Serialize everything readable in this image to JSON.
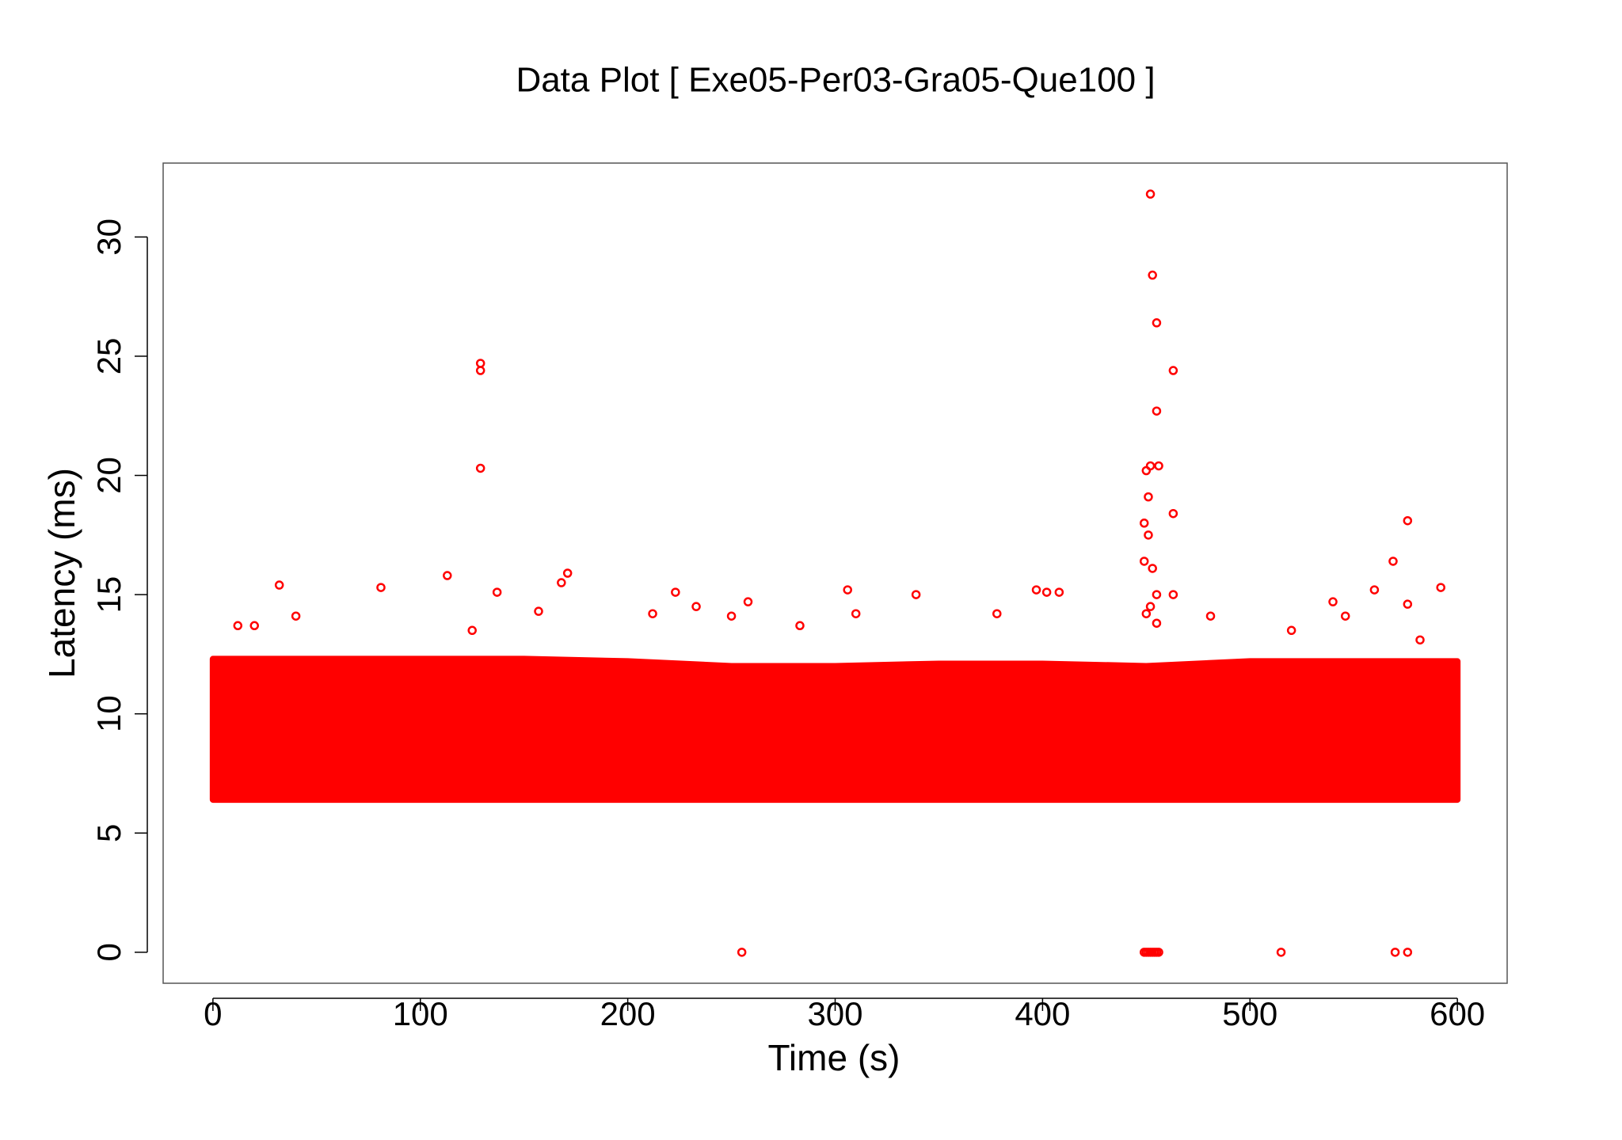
{
  "chart_data": {
    "type": "scatter",
    "title": "Data Plot [ Exe05-Per03-Gra05-Que100 ]",
    "x_label": "Time (s)",
    "y_label": "Latency (ms)",
    "color": "#ff0000",
    "xlim": [
      -24,
      624
    ],
    "ylim": [
      -1.3,
      33.1
    ],
    "xticks": [
      0,
      100,
      200,
      300,
      400,
      500,
      600
    ],
    "yticks": [
      0,
      5,
      10,
      15,
      20,
      25,
      30
    ],
    "band": {
      "x": [
        0,
        50,
        100,
        150,
        200,
        250,
        300,
        350,
        400,
        450,
        500,
        550,
        600
      ],
      "low": [
        6.4,
        6.4,
        6.4,
        6.4,
        6.4,
        6.4,
        6.4,
        6.4,
        6.4,
        6.4,
        6.4,
        6.4,
        6.4
      ],
      "high": [
        12.3,
        12.3,
        12.3,
        12.3,
        12.2,
        12.0,
        12.0,
        12.1,
        12.1,
        12.0,
        12.2,
        12.2,
        12.2
      ]
    },
    "x": [
      129,
      129,
      129,
      452,
      453,
      455,
      463,
      455,
      452,
      456,
      450,
      451,
      463,
      449,
      451,
      453,
      449,
      455,
      463,
      452,
      455,
      450,
      255,
      449,
      450,
      451,
      452,
      453,
      454,
      455,
      456,
      515,
      570,
      576,
      32,
      81,
      113,
      137,
      171,
      168,
      157,
      223,
      306,
      339,
      397,
      402,
      408,
      576,
      569,
      592,
      560,
      576,
      540,
      258,
      283,
      310,
      378,
      481,
      40,
      20,
      12,
      250,
      233,
      212,
      125,
      546,
      582,
      520
    ],
    "values": [
      24.7,
      24.4,
      20.3,
      31.8,
      28.4,
      26.4,
      24.4,
      22.7,
      20.4,
      20.4,
      20.2,
      19.1,
      18.4,
      18.0,
      17.5,
      16.1,
      16.4,
      15.0,
      15.0,
      14.5,
      13.8,
      14.2,
      0,
      0,
      0,
      0,
      0,
      0,
      0,
      0,
      0,
      0,
      0,
      0,
      15.4,
      15.3,
      15.8,
      15.1,
      15.9,
      15.5,
      14.3,
      15.1,
      15.2,
      15.0,
      15.2,
      15.1,
      15.1,
      18.1,
      16.4,
      15.3,
      15.2,
      14.6,
      14.7,
      14.7,
      13.7,
      14.2,
      14.2,
      14.1,
      14.1,
      13.7,
      13.7,
      14.1,
      14.5,
      14.2,
      13.5,
      14.1,
      13.1,
      13.5
    ]
  }
}
